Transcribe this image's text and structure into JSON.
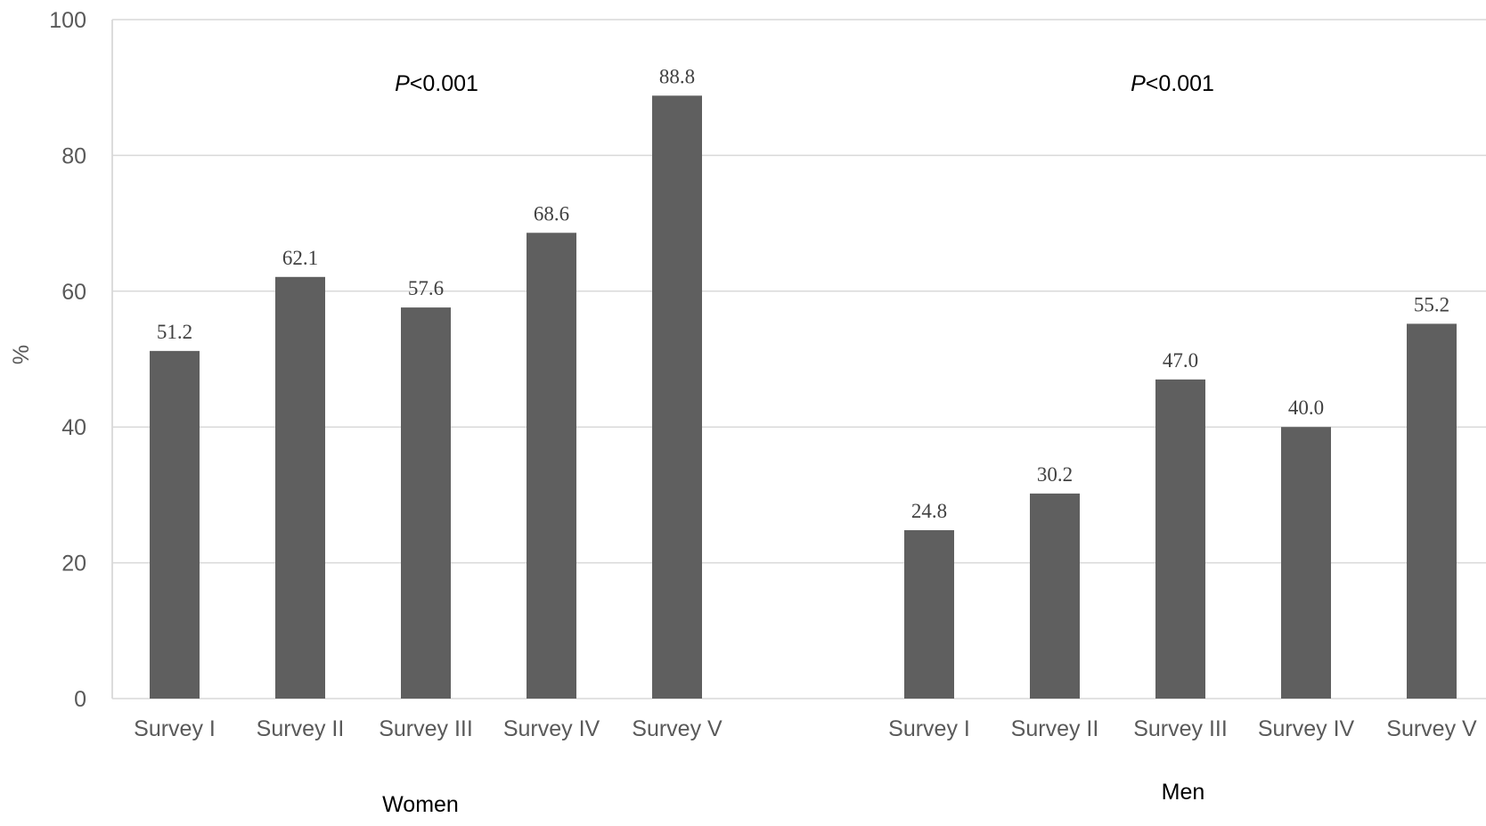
{
  "chart_data": {
    "type": "bar",
    "ylabel": "%",
    "ylim": [
      0,
      100
    ],
    "yticks": [
      "0",
      "20",
      "40",
      "60",
      "80",
      "100"
    ],
    "grid": true,
    "bar_color": "#5f5f5f",
    "groups": [
      {
        "name": "Women",
        "p_label": "<0.001",
        "p_italic": "P",
        "categories": [
          "Survey I",
          "Survey II",
          "Survey III",
          "Survey IV",
          "Survey V"
        ],
        "values": [
          51.2,
          62.1,
          57.6,
          68.6,
          88.8
        ],
        "value_labels": [
          "51.2",
          "62.1",
          "57.6",
          "68.6",
          "88.8"
        ]
      },
      {
        "name": "Men",
        "p_label": "<0.001",
        "p_italic": "P",
        "categories": [
          "Survey I",
          "Survey II",
          "Survey III",
          "Survey IV",
          "Survey V"
        ],
        "values": [
          24.8,
          30.2,
          47.0,
          40.0,
          55.2
        ],
        "value_labels": [
          "24.8",
          "30.2",
          "47.0",
          "40.0",
          "55.2"
        ]
      }
    ]
  }
}
